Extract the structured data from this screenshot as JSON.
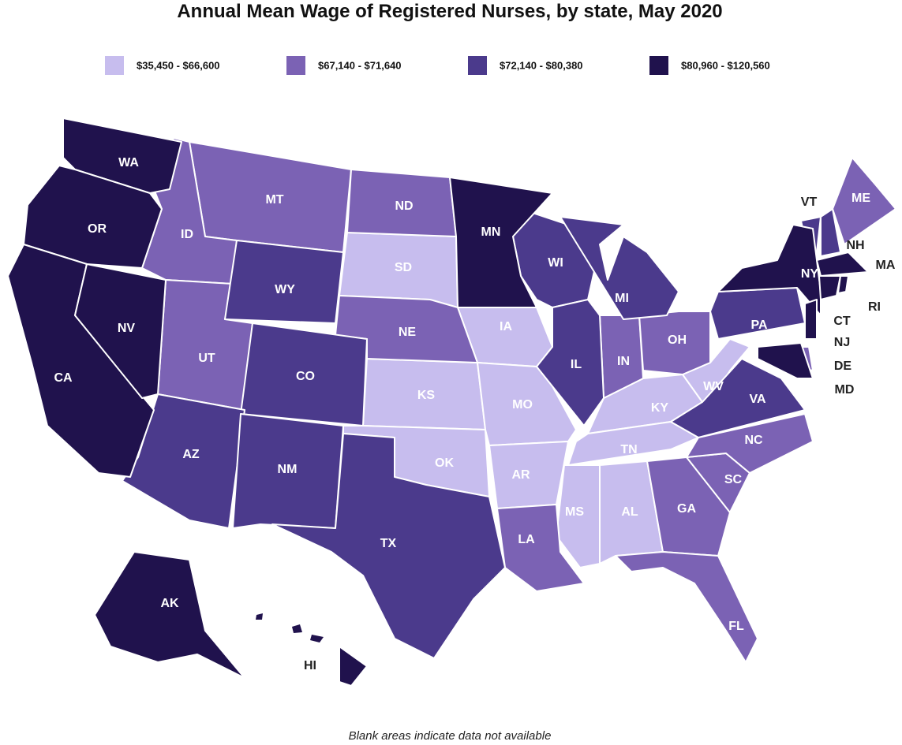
{
  "title": "Annual Mean Wage of Registered Nurses, by state, May 2020",
  "legend": [
    {
      "label": "$35,450 - $66,600",
      "color": "#c7bdee",
      "states": [
        "SD",
        "IA",
        "KS",
        "MO",
        "OK",
        "AR",
        "KY",
        "TN",
        "MS",
        "AL",
        "WV"
      ]
    },
    {
      "label": "$67,140 - $71,640",
      "color": "#7b62b4",
      "states": [
        "MT",
        "ID",
        "UT",
        "ND",
        "NE",
        "IN",
        "OH",
        "LA",
        "GA",
        "FL",
        "SC",
        "NC",
        "ME",
        "DE"
      ]
    },
    {
      "label": "$72,140 - $80,380",
      "color": "#4b3a8c",
      "states": [
        "WY",
        "CO",
        "AZ",
        "NM",
        "TX",
        "WI",
        "IL",
        "MI",
        "PA",
        "VA",
        "VT",
        "NH"
      ]
    },
    {
      "label": "$80,960 - $120,560",
      "color": "#20124d",
      "states": [
        "WA",
        "OR",
        "CA",
        "NV",
        "MN",
        "NY",
        "MA",
        "CT",
        "RI",
        "NJ",
        "MD",
        "AK",
        "HI"
      ]
    }
  ],
  "note": "Blank areas indicate data not available"
}
